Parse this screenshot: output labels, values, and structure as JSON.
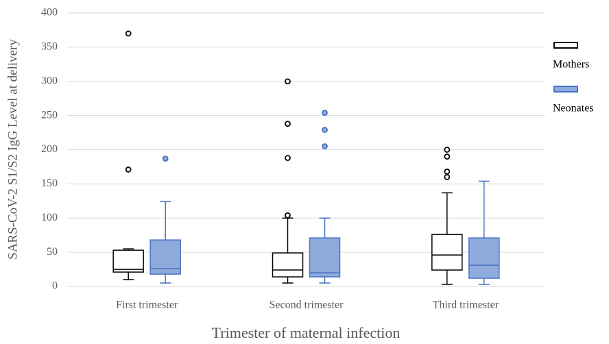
{
  "chart_data": {
    "type": "box",
    "x_label": "Trimester of maternal infection",
    "y_label": "SARS-CoV-2 S1/S2 IgG Level at delivery",
    "categories": [
      "First trimester",
      "Second trimester",
      "Third trimester"
    ],
    "ylim": [
      0,
      400
    ],
    "yticks": [
      0,
      50,
      100,
      150,
      200,
      250,
      300,
      350,
      400
    ],
    "grid": true,
    "legend": "right",
    "series": [
      {
        "name": "Mothers",
        "color": "#ffffff",
        "edge_color": "#000000",
        "boxes": [
          {
            "min": 10,
            "q1": 21,
            "median": 25,
            "q3": 53,
            "max": 55,
            "outliers": [
              171,
              370
            ]
          },
          {
            "min": 5,
            "q1": 14,
            "median": 24,
            "q3": 49,
            "max": 100,
            "outliers": [
              104,
              188,
              238,
              300
            ]
          },
          {
            "min": 3,
            "q1": 24,
            "median": 46,
            "q3": 76,
            "max": 137,
            "outliers": [
              160,
              168,
              190,
              200
            ]
          }
        ]
      },
      {
        "name": "Neonates",
        "color": "#8faadc",
        "edge_color": "#4472c4",
        "boxes": [
          {
            "min": 5,
            "q1": 18,
            "median": 26,
            "q3": 68,
            "max": 124,
            "outliers": [
              187
            ]
          },
          {
            "min": 5,
            "q1": 14,
            "median": 20,
            "q3": 71,
            "max": 100,
            "outliers": [
              205,
              229,
              254
            ]
          },
          {
            "min": 3,
            "q1": 12,
            "median": 31,
            "q3": 71,
            "max": 154,
            "outliers": []
          }
        ]
      }
    ]
  }
}
